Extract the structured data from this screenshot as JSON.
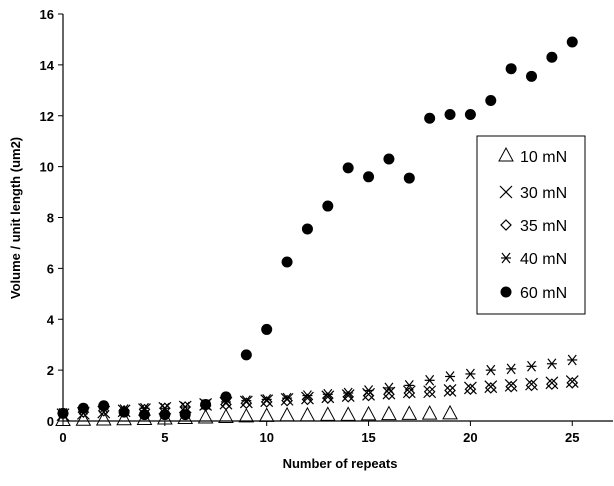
{
  "chart_data": {
    "type": "scatter",
    "title": "",
    "xlabel": "Number of repeats",
    "ylabel": "Volume / unit length (um2)",
    "xlim": [
      0,
      27
    ],
    "ylim": [
      0,
      16
    ],
    "xticks": [
      0,
      5,
      10,
      15,
      20,
      25
    ],
    "yticks": [
      0,
      2,
      4,
      6,
      8,
      10,
      12,
      14,
      16
    ],
    "grid": false,
    "legend_position": "right",
    "series": [
      {
        "name": "10 mN",
        "marker": "triangle",
        "x": [
          0,
          1,
          2,
          3,
          4,
          5,
          6,
          7,
          8,
          9,
          10,
          11,
          12,
          13,
          14,
          15,
          16,
          17,
          18,
          19
        ],
        "y": [
          0.02,
          0.03,
          0.04,
          0.05,
          0.06,
          0.08,
          0.1,
          0.12,
          0.14,
          0.16,
          0.18,
          0.2,
          0.2,
          0.22,
          0.22,
          0.24,
          0.25,
          0.26,
          0.27,
          0.28
        ]
      },
      {
        "name": "30 mN",
        "marker": "x",
        "x": [
          0,
          1,
          2,
          3,
          4,
          5,
          6,
          7,
          8,
          9,
          10,
          11,
          12,
          13,
          14,
          15,
          16,
          17,
          18,
          19,
          20,
          21,
          22,
          23,
          24,
          25
        ],
        "y": [
          0.25,
          0.3,
          0.35,
          0.4,
          0.45,
          0.5,
          0.55,
          0.65,
          0.7,
          0.75,
          0.8,
          0.85,
          0.9,
          0.95,
          1.0,
          1.05,
          1.1,
          1.15,
          1.15,
          1.2,
          1.3,
          1.35,
          1.4,
          1.45,
          1.5,
          1.55
        ]
      },
      {
        "name": "35 mN",
        "marker": "diamond",
        "x": [
          0,
          1,
          2,
          3,
          4,
          5,
          6,
          7,
          8,
          9,
          10,
          11,
          12,
          13,
          14,
          15,
          16,
          17,
          18,
          19,
          20,
          21,
          22,
          23,
          24,
          25
        ],
        "y": [
          0.3,
          0.35,
          0.4,
          0.4,
          0.45,
          0.5,
          0.55,
          0.6,
          0.65,
          0.7,
          0.75,
          0.8,
          0.85,
          0.9,
          0.95,
          1.0,
          1.05,
          1.1,
          1.15,
          1.2,
          1.25,
          1.3,
          1.35,
          1.4,
          1.45,
          1.5
        ]
      },
      {
        "name": "40 mN",
        "marker": "star",
        "x": [
          0,
          1,
          2,
          3,
          4,
          5,
          6,
          7,
          8,
          9,
          10,
          11,
          12,
          13,
          14,
          15,
          16,
          17,
          18,
          19,
          20,
          21,
          22,
          23,
          24,
          25
        ],
        "y": [
          0.3,
          0.45,
          0.5,
          0.45,
          0.5,
          0.5,
          0.55,
          0.65,
          0.75,
          0.8,
          0.85,
          0.9,
          1.0,
          1.05,
          1.1,
          1.2,
          1.3,
          1.4,
          1.6,
          1.75,
          1.85,
          2.0,
          2.05,
          2.15,
          2.25,
          2.4
        ]
      },
      {
        "name": "60 mN",
        "marker": "circle",
        "x": [
          0,
          1,
          2,
          3,
          4,
          5,
          6,
          7,
          8,
          9,
          10,
          11,
          12,
          13,
          14,
          15,
          16,
          17,
          18,
          19,
          20,
          21,
          22,
          23,
          24,
          25
        ],
        "y": [
          0.3,
          0.5,
          0.6,
          0.35,
          0.25,
          0.25,
          0.25,
          0.65,
          0.95,
          2.6,
          3.6,
          6.25,
          7.55,
          8.45,
          9.95,
          9.6,
          10.3,
          9.55,
          11.9,
          12.05,
          12.05,
          12.6,
          13.85,
          13.55,
          14.3,
          14.9
        ]
      }
    ]
  }
}
